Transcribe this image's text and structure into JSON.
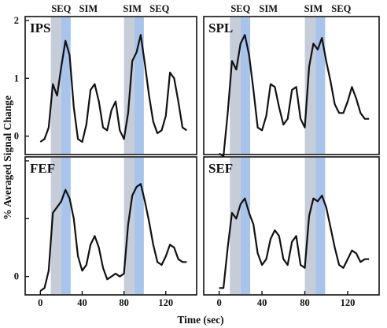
{
  "chart_data": {
    "type": "line",
    "title": "",
    "ylabel": "% Averaged Signal Change",
    "xlabel": "Time (sec)",
    "xlim": [
      -10,
      145
    ],
    "ylim": [
      -0.25,
      2.0
    ],
    "x_ticks": [
      "0",
      "40",
      "80",
      "120"
    ],
    "y_ticks": [
      "0",
      "1",
      "2"
    ],
    "y_ticks_labeled_panels": [
      "IPS",
      "FEF"
    ],
    "band_labels": [
      "SEQ",
      "SIM",
      "SIM",
      "SEQ"
    ],
    "band_label_x": [
      20,
      46,
      88,
      114
    ],
    "shaded_bands": [
      {
        "start": 10,
        "end": 20,
        "color": "#c6ccd8"
      },
      {
        "start": 20,
        "end": 29,
        "color": "#a8c4ea"
      },
      {
        "start": 80,
        "end": 90,
        "color": "#c6ccd8"
      },
      {
        "start": 90,
        "end": 99,
        "color": "#a8c4ea"
      }
    ],
    "grid": false,
    "line_color": "#111111",
    "panels": [
      {
        "name": "IPS",
        "x": [
          0,
          4,
          8,
          12,
          16,
          20,
          24,
          28,
          32,
          36,
          40,
          44,
          48,
          52,
          56,
          60,
          64,
          68,
          72,
          76,
          80,
          84,
          88,
          92,
          96,
          100,
          104,
          108,
          112,
          116,
          120,
          124,
          128,
          132,
          136,
          140
        ],
        "y": [
          -0.1,
          -0.05,
          0.15,
          0.9,
          0.7,
          1.2,
          1.65,
          1.4,
          0.5,
          -0.05,
          -0.1,
          0.2,
          0.8,
          0.9,
          0.6,
          0.15,
          0.1,
          0.45,
          0.6,
          0.1,
          -0.05,
          0.4,
          1.3,
          1.45,
          1.75,
          1.25,
          0.7,
          0.25,
          0.05,
          0.1,
          0.35,
          1.1,
          1.0,
          0.6,
          0.15,
          0.1
        ]
      },
      {
        "name": "SPL",
        "x": [
          0,
          4,
          8,
          12,
          16,
          20,
          24,
          28,
          32,
          36,
          40,
          44,
          48,
          52,
          56,
          60,
          64,
          68,
          72,
          76,
          80,
          84,
          88,
          92,
          96,
          100,
          104,
          108,
          112,
          116,
          120,
          124,
          128,
          132,
          136,
          140
        ],
        "y": [
          -0.3,
          -0.35,
          0.4,
          1.3,
          1.15,
          1.6,
          1.75,
          1.4,
          0.8,
          0.15,
          0.1,
          0.35,
          0.9,
          0.85,
          0.5,
          0.2,
          0.3,
          0.8,
          0.85,
          0.3,
          0.15,
          1.2,
          1.6,
          1.5,
          1.7,
          1.3,
          0.95,
          0.55,
          0.4,
          0.4,
          0.6,
          0.85,
          0.65,
          0.4,
          0.3,
          0.3
        ]
      },
      {
        "name": "FEF",
        "x": [
          0,
          4,
          8,
          12,
          16,
          20,
          24,
          28,
          32,
          36,
          40,
          44,
          48,
          52,
          56,
          60,
          64,
          68,
          72,
          76,
          80,
          84,
          88,
          92,
          96,
          100,
          104,
          108,
          112,
          116,
          120,
          124,
          128,
          132,
          136,
          140
        ],
        "y": [
          -0.25,
          -0.2,
          0.1,
          1.1,
          1.2,
          1.3,
          1.5,
          1.35,
          1.0,
          0.35,
          0.1,
          0.2,
          0.55,
          0.7,
          0.5,
          0.15,
          -0.05,
          0.0,
          0.05,
          0.0,
          0.05,
          0.9,
          1.4,
          1.55,
          1.6,
          1.3,
          0.95,
          0.55,
          0.25,
          0.2,
          0.35,
          0.55,
          0.5,
          0.3,
          0.25,
          0.25
        ]
      },
      {
        "name": "SEF",
        "x": [
          0,
          4,
          8,
          12,
          16,
          20,
          24,
          28,
          32,
          36,
          40,
          44,
          48,
          52,
          56,
          60,
          64,
          68,
          72,
          76,
          80,
          84,
          88,
          92,
          96,
          100,
          104,
          108,
          112,
          116,
          120,
          124,
          128,
          132,
          136,
          140
        ],
        "y": [
          -0.2,
          -0.2,
          0.5,
          1.1,
          1.0,
          1.25,
          1.35,
          1.1,
          0.9,
          0.4,
          0.2,
          0.3,
          0.65,
          0.8,
          0.7,
          0.3,
          0.2,
          0.6,
          0.7,
          0.2,
          0.15,
          1.05,
          1.35,
          1.3,
          1.4,
          1.2,
          0.85,
          0.5,
          0.2,
          0.15,
          0.3,
          0.45,
          0.4,
          0.25,
          0.3,
          0.3
        ]
      }
    ]
  }
}
